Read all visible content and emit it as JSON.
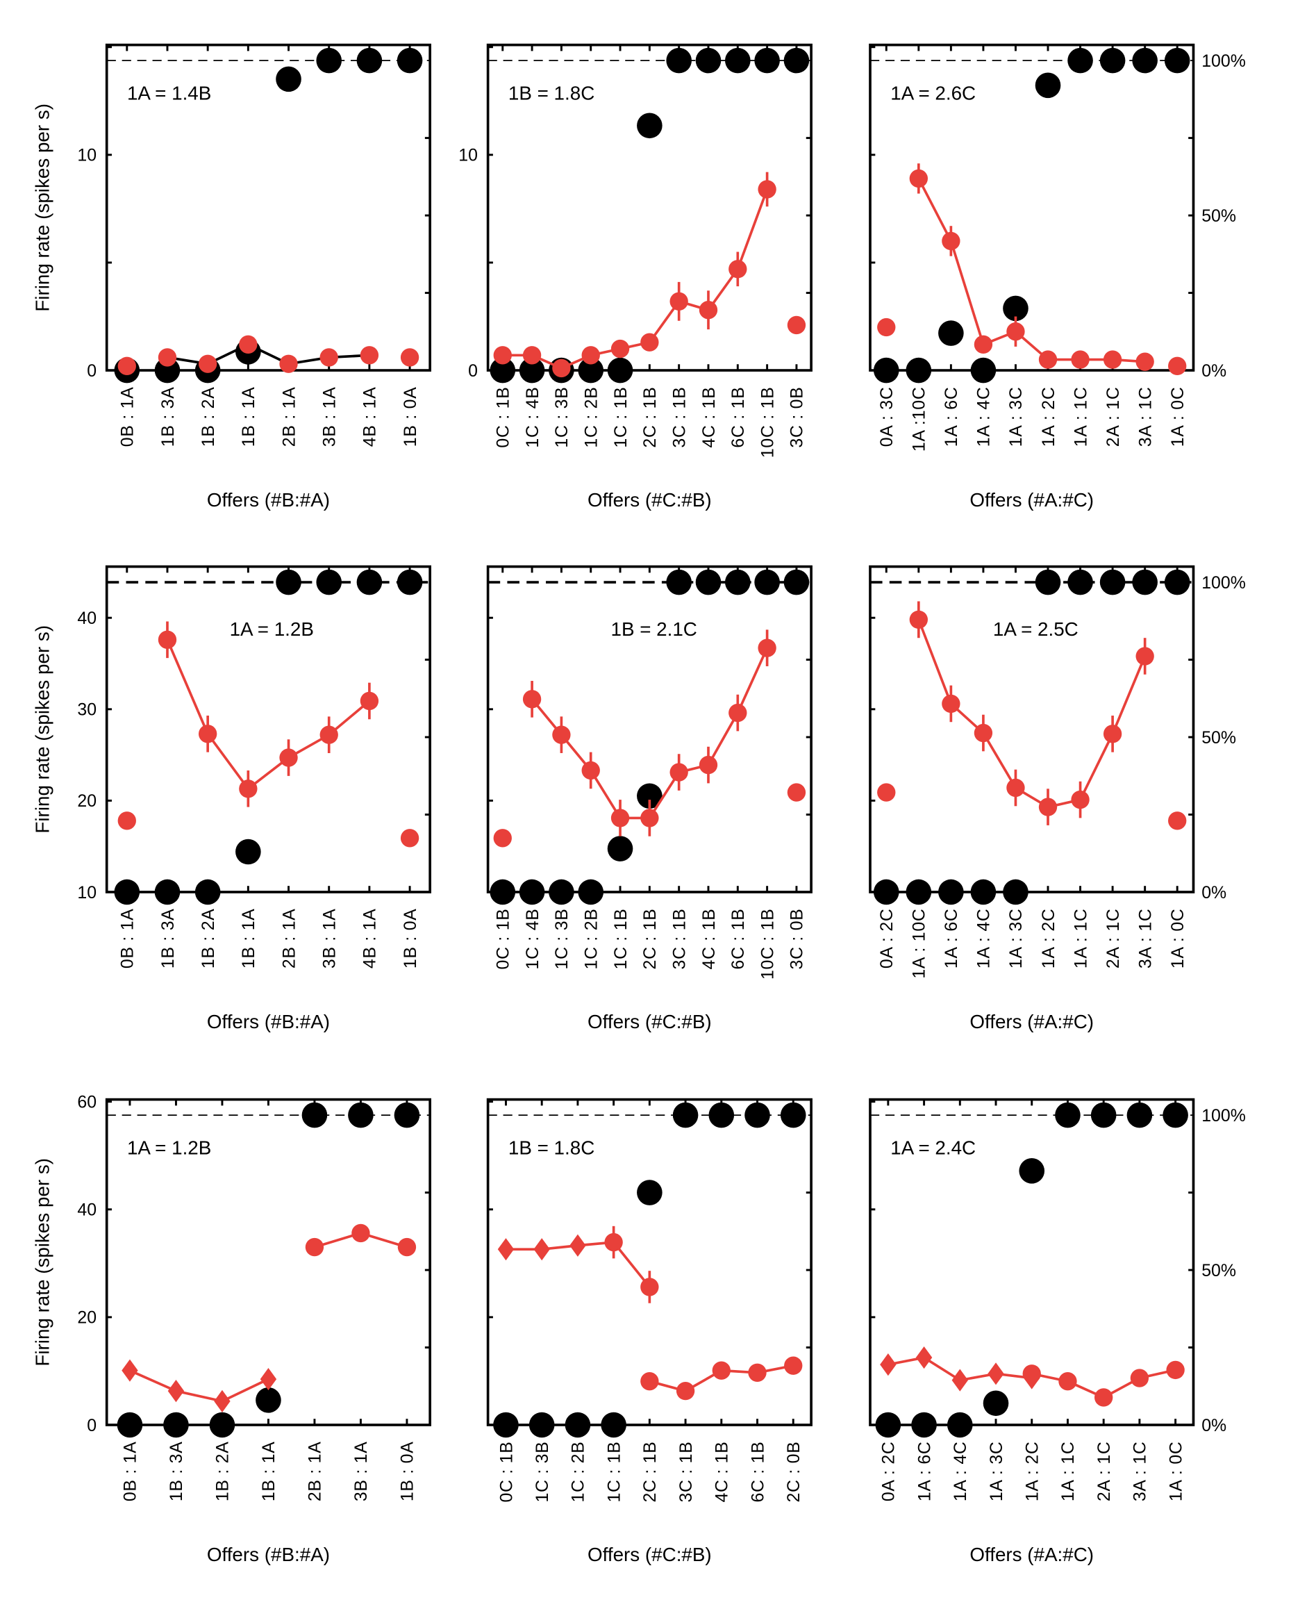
{
  "colors": {
    "red": "#e8403a",
    "black": "#000000"
  },
  "ylabel": "Firing rate (spikes per s)",
  "right_axis_ticks": [
    "0%",
    "50%",
    "100%"
  ],
  "chart_data": [
    {
      "type": "line",
      "row": 0,
      "col": 0,
      "ratio": "1A = 1.4B",
      "xlabel": "Offers (#B:#A)",
      "ylim": [
        0,
        15.1
      ],
      "yticks": [
        0,
        10
      ],
      "categories": [
        "0B : 1A",
        "1B : 3A",
        "1B : 2A",
        "1B : 1A",
        "2B : 1A",
        "3B : 1A",
        "4B : 1A",
        "1B : 0A"
      ],
      "choice_pct": [
        0,
        0,
        0,
        6,
        94,
        100,
        100,
        100
      ],
      "series": [
        {
          "name": "isolated-left",
          "marker": "circle",
          "line": false,
          "line_color": "#e8403a",
          "values": [
            0.2,
            null,
            null,
            null,
            null,
            null,
            null,
            null
          ],
          "err": [
            0,
            0,
            0,
            0,
            0,
            0,
            0,
            0
          ]
        },
        {
          "name": "main",
          "marker": "circle",
          "line": true,
          "line_color": "#000000",
          "values": [
            null,
            0.6,
            0.3,
            1.2,
            0.3,
            0.6,
            0.7,
            null
          ],
          "err": [
            0,
            0,
            0,
            0,
            0,
            0,
            0,
            0
          ]
        },
        {
          "name": "isolated-right",
          "marker": "circle",
          "line": false,
          "line_color": "#e8403a",
          "values": [
            null,
            null,
            null,
            null,
            null,
            null,
            null,
            0.6
          ],
          "err": [
            0,
            0,
            0,
            0,
            0,
            0,
            0,
            0
          ]
        }
      ]
    },
    {
      "type": "line",
      "row": 0,
      "col": 1,
      "ratio": "1B = 1.8C",
      "xlabel": "Offers (#C:#B)",
      "ylim": [
        0,
        15.1
      ],
      "yticks": [
        0,
        10
      ],
      "categories": [
        "0C : 1B",
        "1C : 4B",
        "1C : 3B",
        "1C : 2B",
        "1C : 1B",
        "2C : 1B",
        "3C : 1B",
        "4C : 1B",
        "6C : 1B",
        "10C : 1B",
        "3C : 0B"
      ],
      "choice_pct": [
        0,
        0,
        0,
        0,
        0,
        79,
        100,
        100,
        100,
        100,
        100
      ],
      "series": [
        {
          "name": "main",
          "marker": "circle",
          "line": true,
          "line_color": "#e8403a",
          "values": [
            0.7,
            0.7,
            0.1,
            0.7,
            1.0,
            1.3,
            3.2,
            2.8,
            4.7,
            8.4,
            null
          ],
          "err": [
            0,
            0,
            0,
            0,
            0,
            0,
            0.9,
            0.9,
            0.8,
            0.8,
            0
          ]
        },
        {
          "name": "isolated-right",
          "marker": "circle",
          "line": false,
          "line_color": "#e8403a",
          "values": [
            null,
            null,
            null,
            null,
            null,
            null,
            null,
            null,
            null,
            null,
            2.1
          ],
          "err": [
            0,
            0,
            0,
            0,
            0,
            0,
            0,
            0,
            0,
            0,
            0
          ]
        }
      ]
    },
    {
      "type": "line",
      "row": 0,
      "col": 2,
      "ratio": "1A = 2.6C",
      "xlabel": "Offers (#A:#C)",
      "ylim": [
        0,
        15.1
      ],
      "yticks": [],
      "categories": [
        "0A : 3C",
        "1A :10C",
        "1A : 6C",
        "1A : 4C",
        "1A : 3C",
        "1A : 2C",
        "1A : 1C",
        "2A : 1C",
        "3A : 1C",
        "1A : 0C"
      ],
      "choice_pct": [
        0,
        0,
        12,
        0,
        20,
        92,
        100,
        100,
        100,
        100
      ],
      "series": [
        {
          "name": "isolated-left",
          "marker": "circle",
          "line": false,
          "line_color": "#e8403a",
          "values": [
            2.0,
            null,
            null,
            null,
            null,
            null,
            null,
            null,
            null,
            null
          ],
          "err": [
            0,
            0,
            0,
            0,
            0,
            0,
            0,
            0,
            0,
            0
          ]
        },
        {
          "name": "main",
          "marker": "circle",
          "line": true,
          "line_color": "#e8403a",
          "values": [
            null,
            8.9,
            6.0,
            1.2,
            1.8,
            0.5,
            0.5,
            0.5,
            0.4,
            null
          ],
          "err": [
            0,
            0.7,
            0.7,
            0,
            0.7,
            0,
            0,
            0,
            0,
            0
          ]
        },
        {
          "name": "isolated-right",
          "marker": "circle",
          "line": false,
          "line_color": "#e8403a",
          "values": [
            null,
            null,
            null,
            null,
            null,
            null,
            null,
            null,
            null,
            0.2
          ],
          "err": [
            0,
            0,
            0,
            0,
            0,
            0,
            0,
            0,
            0,
            0
          ]
        }
      ]
    },
    {
      "type": "line",
      "row": 1,
      "col": 0,
      "ratio": "1A = 1.2B",
      "xlabel": "Offers (#B:#A)",
      "ylim": [
        10,
        45.6
      ],
      "yticks": [
        10,
        20,
        30,
        40
      ],
      "categories": [
        "0B : 1A",
        "1B : 3A",
        "1B : 2A",
        "1B : 1A",
        "2B : 1A",
        "3B : 1A",
        "4B : 1A",
        "1B : 0A"
      ],
      "choice_pct": [
        0,
        0,
        0,
        13,
        100,
        100,
        100,
        100
      ],
      "series": [
        {
          "name": "isolated-left",
          "marker": "circle",
          "line": false,
          "line_color": "#e8403a",
          "values": [
            17.8,
            null,
            null,
            null,
            null,
            null,
            null,
            null
          ],
          "err": [
            0,
            0,
            0,
            0,
            0,
            0,
            0,
            0
          ]
        },
        {
          "name": "main",
          "marker": "circle",
          "line": true,
          "line_color": "#e8403a",
          "values": [
            null,
            37.6,
            27.3,
            21.3,
            24.7,
            27.2,
            30.9,
            null
          ],
          "err": [
            0,
            2,
            2,
            2,
            2,
            2,
            2,
            0
          ]
        },
        {
          "name": "isolated-right",
          "marker": "circle",
          "line": false,
          "line_color": "#e8403a",
          "values": [
            null,
            null,
            null,
            null,
            null,
            null,
            null,
            15.9
          ],
          "err": [
            0,
            0,
            0,
            0,
            0,
            0,
            0,
            0
          ]
        }
      ]
    },
    {
      "type": "line",
      "row": 1,
      "col": 1,
      "ratio": "1B = 2.1C",
      "xlabel": "Offers (#C:#B)",
      "ylim": [
        10,
        45.6
      ],
      "yticks": [],
      "categories": [
        "0C : 1B",
        "1C : 4B",
        "1C : 3B",
        "1C : 2B",
        "1C : 1B",
        "2C : 1B",
        "3C : 1B",
        "4C : 1B",
        "6C : 1B",
        "10C : 1B",
        "3C : 0B"
      ],
      "choice_pct": [
        0,
        0,
        0,
        0,
        14,
        31,
        100,
        100,
        100,
        100,
        100
      ],
      "series": [
        {
          "name": "isolated-left",
          "marker": "circle",
          "line": false,
          "line_color": "#e8403a",
          "values": [
            15.9,
            null,
            null,
            null,
            null,
            null,
            null,
            null,
            null,
            null,
            null
          ],
          "err": [
            0,
            0,
            0,
            0,
            0,
            0,
            0,
            0,
            0,
            0,
            0
          ]
        },
        {
          "name": "main",
          "marker": "circle",
          "line": true,
          "line_color": "#e8403a",
          "values": [
            null,
            31.1,
            27.2,
            23.3,
            18.1,
            18.1,
            23.1,
            23.9,
            29.6,
            36.7,
            null
          ],
          "err": [
            0,
            2,
            2,
            2,
            2,
            2,
            2,
            2,
            2,
            2,
            0
          ]
        },
        {
          "name": "isolated-right",
          "marker": "circle",
          "line": false,
          "line_color": "#e8403a",
          "values": [
            null,
            null,
            null,
            null,
            null,
            null,
            null,
            null,
            null,
            null,
            20.9
          ],
          "err": [
            0,
            0,
            0,
            0,
            0,
            0,
            0,
            0,
            0,
            0,
            0
          ]
        }
      ]
    },
    {
      "type": "line",
      "row": 1,
      "col": 2,
      "ratio": "1A = 2.5C",
      "xlabel": "Offers (#A:#C)",
      "ylim": [
        10,
        45.6
      ],
      "yticks": [],
      "categories": [
        "0A : 2C",
        "1A : 10C",
        "1A : 6C",
        "1A : 4C",
        "1A : 3C",
        "1A : 2C",
        "1A : 1C",
        "2A : 1C",
        "3A : 1C",
        "1A : 0C"
      ],
      "choice_pct": [
        0,
        0,
        0,
        0,
        0,
        100,
        100,
        100,
        100,
        100
      ],
      "series": [
        {
          "name": "isolated-left",
          "marker": "circle",
          "line": false,
          "line_color": "#e8403a",
          "values": [
            20.9,
            null,
            null,
            null,
            null,
            null,
            null,
            null,
            null,
            null
          ],
          "err": [
            0,
            0,
            0,
            0,
            0,
            0,
            0,
            0,
            0,
            0
          ]
        },
        {
          "name": "main",
          "marker": "circle",
          "line": true,
          "line_color": "#e8403a",
          "values": [
            null,
            39.8,
            30.6,
            27.4,
            21.4,
            19.3,
            20.1,
            27.3,
            35.8,
            null
          ],
          "err": [
            0,
            2,
            2,
            2,
            2,
            2,
            2,
            2,
            2,
            0
          ]
        },
        {
          "name": "isolated-right",
          "marker": "circle",
          "line": false,
          "line_color": "#e8403a",
          "values": [
            null,
            null,
            null,
            null,
            null,
            null,
            null,
            null,
            null,
            17.8
          ],
          "err": [
            0,
            0,
            0,
            0,
            0,
            0,
            0,
            0,
            0,
            0
          ]
        }
      ]
    },
    {
      "type": "line",
      "row": 2,
      "col": 0,
      "ratio": "1A = 1.2B",
      "xlabel": "Offers (#B:#A)",
      "ylim": [
        0,
        60.4
      ],
      "yticks": [
        0,
        20,
        40,
        60
      ],
      "categories": [
        "0B : 1A",
        "1B : 3A",
        "1B : 2A",
        "1B : 1A",
        "2B : 1A",
        "3B : 1A",
        "1B : 0A"
      ],
      "choice_pct": [
        0,
        0,
        0,
        8,
        100,
        100,
        100
      ],
      "series": [
        {
          "name": "diamonds",
          "marker": "diamond",
          "line": true,
          "line_color": "#e8403a",
          "values": [
            10.1,
            6.3,
            4.4,
            8.5,
            null,
            null,
            null
          ],
          "err": [
            0,
            0,
            0,
            0,
            0,
            0,
            0
          ]
        },
        {
          "name": "circles",
          "marker": "circle",
          "line": true,
          "line_color": "#e8403a",
          "values": [
            null,
            null,
            null,
            null,
            33.0,
            35.6,
            33.0
          ],
          "err": [
            0,
            0,
            0,
            0,
            0,
            0,
            0
          ]
        }
      ]
    },
    {
      "type": "line",
      "row": 2,
      "col": 1,
      "ratio": "1B = 1.8C",
      "xlabel": "Offers (#C:#B)",
      "ylim": [
        0,
        60.4
      ],
      "yticks": [],
      "categories": [
        "0C : 1B",
        "1C : 3B",
        "1C : 2B",
        "1C : 1B",
        "2C : 1B",
        "3C : 1B",
        "4C : 1B",
        "6C : 1B",
        "2C : 0B"
      ],
      "choice_pct": [
        0,
        0,
        0,
        0,
        75,
        100,
        100,
        100,
        100
      ],
      "series": [
        {
          "name": "diamonds",
          "marker": "diamond",
          "line": true,
          "line_color": "#e8403a",
          "values": [
            32.6,
            32.6,
            33.3,
            null,
            null,
            null,
            null,
            null,
            null
          ],
          "err": [
            0,
            0,
            0,
            0,
            0,
            0,
            0,
            0,
            0
          ]
        },
        {
          "name": "diamond-link",
          "marker": "none",
          "line": true,
          "line_color": "#e8403a",
          "values": [
            null,
            null,
            33.3,
            33.9,
            null,
            null,
            null,
            null,
            null
          ],
          "err": [
            0,
            0,
            0,
            0,
            0,
            0,
            0,
            0,
            0
          ]
        },
        {
          "name": "circles-a",
          "marker": "circle",
          "line": true,
          "line_color": "#e8403a",
          "values": [
            null,
            null,
            null,
            33.9,
            25.6,
            null,
            null,
            null,
            null
          ],
          "err": [
            0,
            0,
            0,
            3,
            3,
            0,
            0,
            0,
            0
          ]
        },
        {
          "name": "circles-b",
          "marker": "circle",
          "line": true,
          "line_color": "#e8403a",
          "values": [
            null,
            null,
            null,
            null,
            8.1,
            6.3,
            10.1,
            9.7,
            11.0
          ],
          "err": [
            0,
            0,
            0,
            0,
            0,
            0,
            0,
            0,
            0
          ]
        }
      ]
    },
    {
      "type": "line",
      "row": 2,
      "col": 2,
      "ratio": "1A = 2.4C",
      "xlabel": "Offers (#A:#C)",
      "ylim": [
        0,
        60.4
      ],
      "yticks": [],
      "categories": [
        "0A : 2C",
        "1A : 6C",
        "1A : 4C",
        "1A : 3C",
        "1A : 2C",
        "1A : 1C",
        "2A : 1C",
        "3A : 1C",
        "1A : 0C"
      ],
      "choice_pct": [
        0,
        0,
        0,
        7,
        82,
        100,
        100,
        100,
        100
      ],
      "series": [
        {
          "name": "diamonds",
          "marker": "diamond",
          "line": true,
          "line_color": "#e8403a",
          "values": [
            11.2,
            12.5,
            8.3,
            9.5,
            8.7,
            null,
            null,
            null,
            null
          ],
          "err": [
            0,
            0,
            0,
            0,
            0,
            0,
            0,
            0,
            0
          ]
        },
        {
          "name": "circles",
          "marker": "circle",
          "line": true,
          "line_color": "#e8403a",
          "values": [
            null,
            null,
            null,
            null,
            9.5,
            8.1,
            5.1,
            8.7,
            10.2
          ],
          "err": [
            0,
            0,
            0,
            0,
            0,
            0,
            0,
            0,
            0
          ]
        }
      ]
    }
  ]
}
